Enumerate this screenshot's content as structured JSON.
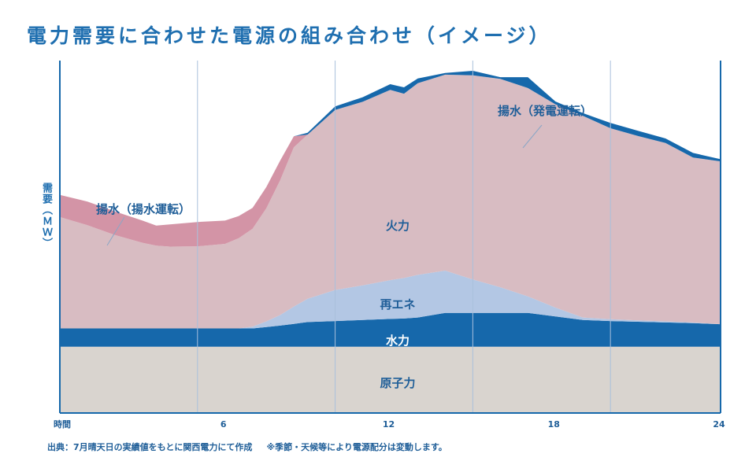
{
  "chart_data": {
    "type": "area",
    "title": "電力需要に合わせた電源の組み合わせ（イメージ）",
    "ylabel": "需要（ＭＷ）",
    "xlabel": "時間",
    "x_ticks": [
      {
        "x": 0,
        "label": "時間"
      },
      {
        "x": 6,
        "label": "6"
      },
      {
        "x": 12,
        "label": "12"
      },
      {
        "x": 18,
        "label": "18"
      },
      {
        "x": 24,
        "label": "24"
      }
    ],
    "xlim": [
      0,
      24
    ],
    "ylim": [
      0,
      100
    ],
    "x": [
      0,
      1,
      2,
      3,
      3.5,
      4,
      5,
      6,
      6.5,
      7,
      7.5,
      8,
      8.5,
      9,
      10,
      11,
      12,
      12.5,
      13,
      14,
      15,
      16,
      17,
      18,
      19,
      20,
      21,
      22,
      23,
      24
    ],
    "series": [
      {
        "name": "原子力",
        "color": "#d9d4cf",
        "values": [
          18.8,
          18.8,
          18.8,
          18.8,
          18.8,
          18.8,
          18.8,
          18.8,
          18.8,
          18.8,
          18.8,
          18.8,
          18.8,
          18.8,
          18.8,
          18.8,
          18.8,
          18.8,
          18.8,
          18.8,
          18.8,
          18.8,
          18.8,
          18.8,
          18.8,
          18.8,
          18.8,
          18.8,
          18.8,
          18.8
        ]
      },
      {
        "name": "水力",
        "color": "#1668ab",
        "values": [
          5.2,
          5.2,
          5.2,
          5.2,
          5.2,
          5.2,
          5.2,
          5.2,
          5.2,
          5.2,
          5.6,
          6,
          6.5,
          7,
          7.3,
          7.6,
          7.9,
          8,
          8.3,
          9.6,
          9.6,
          9.6,
          9.6,
          8.6,
          7.6,
          7.3,
          7.1,
          6.9,
          6.7,
          6.4
        ]
      },
      {
        "name": "再エネ",
        "color": "#b3c7e4",
        "values": [
          0,
          0,
          0,
          0,
          0,
          0,
          0,
          0,
          0,
          0.5,
          1.6,
          3,
          4.9,
          6.6,
          8.8,
          9.8,
          11,
          11.5,
          12.1,
          12,
          9.5,
          7.3,
          4.7,
          2.5,
          0.7,
          0.5,
          0.4,
          0.3,
          0.2,
          0
        ]
      },
      {
        "name": "火力",
        "color": "#d8bcc2",
        "values": [
          31.6,
          29.3,
          26.5,
          24.3,
          23.5,
          23.2,
          23.3,
          24,
          25.6,
          27.8,
          32.1,
          38.2,
          45.2,
          46.6,
          51.1,
          52.1,
          54,
          52.3,
          54.4,
          55.6,
          57.9,
          59.1,
          59.1,
          57.7,
          57.2,
          54.2,
          52.3,
          50.6,
          46.8,
          46.2
        ]
      },
      {
        "name": "揚水（揚水運転）",
        "color": "#d394a6",
        "values": [
          6.3,
          6.7,
          6.7,
          6.3,
          5.7,
          6.3,
          6.9,
          6.6,
          6.3,
          5.9,
          6,
          5.6,
          3.1,
          0,
          0,
          0,
          0,
          0,
          0,
          0,
          0,
          0,
          0,
          0,
          0,
          0,
          0,
          0,
          0,
          0
        ]
      },
      {
        "name": "揚水（発電運転）",
        "color": "#1668ab",
        "values": [
          0,
          0,
          0,
          0,
          0,
          0,
          0,
          0,
          0,
          0,
          0,
          0,
          0,
          0.5,
          1,
          1.3,
          1.6,
          1.8,
          1.3,
          0.5,
          1.3,
          0.5,
          3.1,
          0.8,
          0.8,
          1.5,
          1.5,
          1.3,
          1.3,
          0.6
        ]
      }
    ],
    "area_labels": {
      "nuclear": "原子力",
      "hydro": "水力",
      "renewable": "再エネ",
      "thermal": "火力",
      "pumped_pump": "揚水（揚水運転）",
      "pumped_gen": "揚水（発電運転）"
    },
    "vertical_gridlines_at": [
      0,
      5,
      10,
      15,
      20,
      24
    ]
  },
  "footer": {
    "source": "出典：7月晴天日の実績値をもとに関西電力にて作成",
    "note": "※季節・天候等により電源配分は変動します。"
  }
}
